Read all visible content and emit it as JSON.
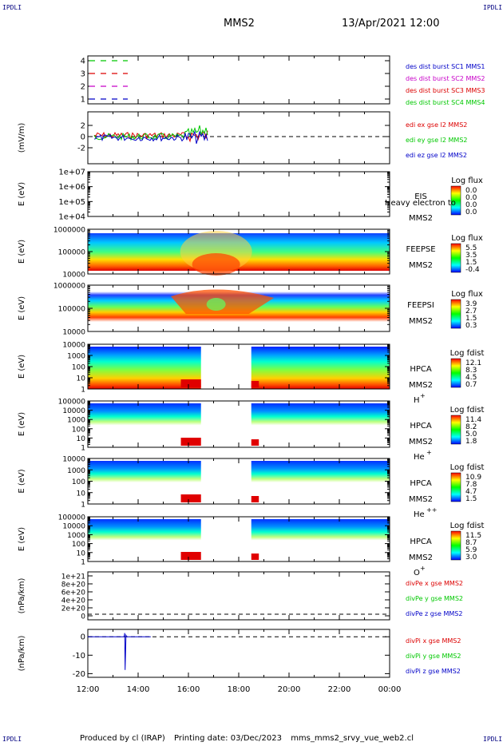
{
  "header": {
    "corner_label": "IPDLI",
    "mission": "MMS2",
    "datetime": "13/Apr/2021 12:00"
  },
  "footer": {
    "produced_by": "Produced by cl (IRAP)",
    "printing_date": "Printing date: 03/Dec/2023",
    "filename": "mms_mms2_srvy_vue_web2.cl"
  },
  "colors": {
    "mms1": "#0000c8",
    "mms2": "#c800c8",
    "mms3": "#dc0000",
    "mms4": "#00c800",
    "x": "#dc0000",
    "y": "#00c800",
    "z": "#0000c8"
  },
  "chart_data": [
    {
      "type": "line",
      "panel": "burst",
      "yticks": [
        "1",
        "2",
        "3",
        "4"
      ],
      "legend": [
        {
          "name": "des dist burst SC1 MMS1",
          "color": "#0000c8"
        },
        {
          "name": "des dist burst SC2 MMS2",
          "color": "#c800c8"
        },
        {
          "name": "des dist burst SC3 MMS3",
          "color": "#dc0000"
        },
        {
          "name": "des dist burst SC4 MMS4",
          "color": "#00c800"
        }
      ]
    },
    {
      "type": "line",
      "panel": "edi",
      "ylabel": "(mV/m)",
      "yticks": [
        "2",
        "0",
        "-2"
      ],
      "legend": [
        {
          "name": "edi ex gse l2 MMS2",
          "color": "#dc0000"
        },
        {
          "name": "edi ey gse l2 MMS2",
          "color": "#00c800"
        },
        {
          "name": "edi ez gse l2 MMS2",
          "color": "#0000c8"
        }
      ]
    },
    {
      "type": "heatmap",
      "panel": "eis",
      "ylabel": "E (eV)",
      "yticks": [
        "1e+07",
        "1e+06",
        "1e+05",
        "1e+04"
      ],
      "instrument": "EIS",
      "overlap_text": "Heavy electron to",
      "spacecraft": "MMS2",
      "colorbar_title": "Log flux",
      "colorbar_ticks": [
        "0.0",
        "0.0",
        "0.0",
        "0.0"
      ]
    },
    {
      "type": "heatmap",
      "panel": "feepse",
      "ylabel": "E (eV)",
      "yticks": [
        "1000000",
        "100000",
        "10000"
      ],
      "instrument": "FEEPSE",
      "spacecraft": "MMS2",
      "colorbar_title": "Log flux",
      "colorbar_ticks": [
        "5.5",
        "3.5",
        "1.5",
        "-0.4"
      ]
    },
    {
      "type": "heatmap",
      "panel": "feepsi",
      "ylabel": "E (eV)",
      "yticks": [
        "1000000",
        "100000",
        "10000"
      ],
      "instrument": "FEEPSI",
      "spacecraft": "MMS2",
      "colorbar_title": "Log flux",
      "colorbar_ticks": [
        "3.9",
        "2.7",
        "1.5",
        "0.3"
      ]
    },
    {
      "type": "heatmap",
      "panel": "hpca_h",
      "ylabel": "E (eV)",
      "yticks": [
        "10000",
        "1000",
        "100",
        "10",
        "1"
      ],
      "instrument": "HPCA",
      "spacecraft": "MMS2",
      "species": "H",
      "charge": "+",
      "colorbar_title": "Log fdist",
      "colorbar_ticks": [
        "12.1",
        "8.3",
        "4.5",
        "0.7"
      ]
    },
    {
      "type": "heatmap",
      "panel": "hpca_he1",
      "ylabel": "E (eV)",
      "yticks": [
        "100000",
        "10000",
        "1000",
        "100",
        "10",
        "1"
      ],
      "instrument": "HPCA",
      "spacecraft": "MMS2",
      "species": "He",
      "charge": "+",
      "colorbar_title": "Log fdist",
      "colorbar_ticks": [
        "11.4",
        "8.2",
        "5.0",
        "1.8"
      ]
    },
    {
      "type": "heatmap",
      "panel": "hpca_he2",
      "ylabel": "E (eV)",
      "yticks": [
        "10000",
        "1000",
        "100",
        "10",
        "1"
      ],
      "instrument": "HPCA",
      "spacecraft": "MMS2",
      "species": "He",
      "charge": "++",
      "colorbar_title": "Log fdist",
      "colorbar_ticks": [
        "10.9",
        "7.8",
        "4.7",
        "1.5"
      ]
    },
    {
      "type": "heatmap",
      "panel": "hpca_o",
      "ylabel": "E (eV)",
      "yticks": [
        "100000",
        "10000",
        "1000",
        "100",
        "10",
        "1"
      ],
      "instrument": "HPCA",
      "spacecraft": "MMS2",
      "species": "O",
      "charge": "+",
      "colorbar_title": "Log fdist",
      "colorbar_ticks": [
        "11.5",
        "8.7",
        "5.9",
        "3.0"
      ]
    },
    {
      "type": "line",
      "panel": "divpe",
      "ylabel": "(nPa/km)",
      "yticks": [
        "1e+21",
        "8e+20",
        "6e+20",
        "4e+20",
        "2e+20",
        "0"
      ],
      "legend": [
        {
          "name": "divPe x gse MMS2",
          "color": "#dc0000"
        },
        {
          "name": "divPe y gse MMS2",
          "color": "#00c800"
        },
        {
          "name": "divPe z gse MMS2",
          "color": "#0000c8"
        }
      ]
    },
    {
      "type": "line",
      "panel": "divpi",
      "ylabel": "(nPa/km)",
      "yticks": [
        "0",
        "-10",
        "-20"
      ],
      "ylim": [
        -22,
        4
      ],
      "legend": [
        {
          "name": "divPi x gse MMS2",
          "color": "#dc0000"
        },
        {
          "name": "divPi y gse MMS2",
          "color": "#00c800"
        },
        {
          "name": "divPi z gse MMS2",
          "color": "#0000c8"
        }
      ],
      "series": [
        {
          "name": "divPi z gse MMS2",
          "x": [
            "12:00",
            "13:25",
            "13:27",
            "13:28",
            "13:29",
            "13:31",
            "13:33",
            "14:30"
          ],
          "values": [
            0,
            0,
            0.3,
            2,
            -18,
            0.8,
            0,
            0
          ]
        }
      ]
    }
  ],
  "xaxis": {
    "ticks": [
      "12:00",
      "14:00",
      "16:00",
      "18:00",
      "20:00",
      "22:00",
      "00:00"
    ]
  }
}
